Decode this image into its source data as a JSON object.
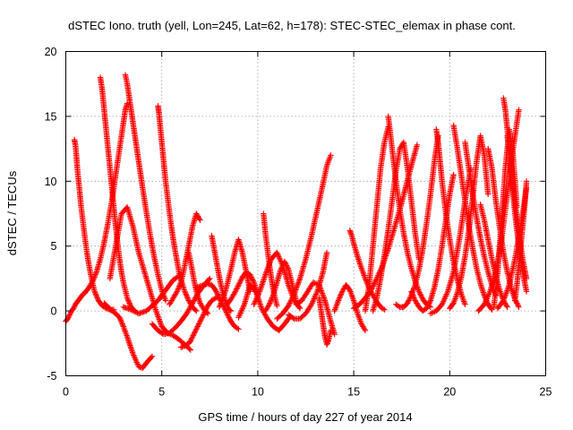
{
  "chart_data": {
    "type": "scatter",
    "title": "dSTEC Iono. truth (yell, Lon=245, Lat=62, h=178): STEC-STEC_elemax in phase cont.",
    "xlabel": "GPS time / hours of day 227 of year 2014",
    "ylabel": "dSTEC  / TECUs",
    "xlim": [
      0,
      25
    ],
    "ylim": [
      -5,
      20
    ],
    "xticks": [
      0,
      5,
      10,
      15,
      20,
      25
    ],
    "yticks": [
      -5,
      0,
      5,
      10,
      15,
      20
    ],
    "grid": true,
    "legend": "none",
    "marker": "plus",
    "color": "#ff0000",
    "series": [
      {
        "x": [
          0.0,
          0.1,
          0.2,
          0.3,
          0.4,
          0.5,
          0.6,
          0.7,
          0.8,
          0.9,
          1.0
        ],
        "y": [
          -0.8,
          -0.6,
          -0.3,
          0.0,
          0.2,
          0.5,
          0.7,
          0.9,
          1.1,
          1.3,
          1.4
        ]
      },
      {
        "x": [
          0.45,
          0.5,
          0.55,
          0.6,
          0.7,
          0.8,
          0.9,
          1.0,
          1.1,
          1.2,
          1.3,
          1.4,
          1.5,
          1.7,
          1.9,
          2.1,
          2.3,
          2.5
        ],
        "y": [
          13.2,
          12.8,
          12.0,
          11.0,
          9.5,
          8.0,
          6.8,
          5.6,
          4.5,
          3.6,
          2.8,
          2.1,
          1.5,
          0.8,
          0.4,
          0.2,
          0.1,
          0.1
        ]
      },
      {
        "x": [
          1.0,
          1.2,
          1.4,
          1.6,
          1.8,
          2.0,
          2.2,
          2.4,
          2.6,
          2.8,
          3.0,
          3.1,
          3.2
        ],
        "y": [
          1.4,
          1.8,
          2.3,
          3.0,
          4.0,
          5.3,
          6.8,
          8.5,
          10.5,
          12.5,
          14.5,
          15.5,
          16.0
        ]
      },
      {
        "x": [
          1.8,
          1.9,
          2.0,
          2.1,
          2.2,
          2.3,
          2.4,
          2.5,
          2.6,
          2.7,
          2.8,
          2.9,
          3.0,
          3.2,
          3.4,
          3.6
        ],
        "y": [
          18.0,
          17.0,
          15.5,
          14.0,
          12.5,
          11.0,
          9.5,
          8.0,
          6.5,
          5.2,
          4.0,
          3.0,
          2.2,
          1.0,
          0.3,
          0.0
        ]
      },
      {
        "x": [
          2.0,
          2.2,
          2.4,
          2.6,
          2.8,
          3.0,
          3.2,
          3.5,
          3.8,
          4.0,
          4.2,
          4.5
        ],
        "y": [
          0.6,
          0.3,
          0.0,
          -0.2,
          -0.5,
          -1.2,
          -2.0,
          -3.3,
          -4.3,
          -4.4,
          -4.0,
          -3.5
        ]
      },
      {
        "x": [
          3.1,
          3.2,
          3.3,
          3.4,
          3.5,
          3.6,
          3.7,
          3.8,
          3.9,
          4.0,
          4.2,
          4.4,
          4.6,
          4.8,
          5.0,
          5.2
        ],
        "y": [
          18.2,
          17.5,
          16.5,
          15.5,
          14.5,
          13.5,
          12.5,
          11.5,
          10.5,
          9.5,
          7.6,
          5.8,
          4.2,
          2.8,
          1.6,
          0.8
        ]
      },
      {
        "x": [
          2.3,
          2.6,
          2.9,
          3.2,
          3.5,
          3.8,
          4.1,
          4.4,
          4.7,
          5.0,
          5.3,
          5.6,
          5.9,
          6.2,
          6.5
        ],
        "y": [
          2.5,
          5.0,
          7.5,
          8.0,
          6.5,
          4.5,
          3.0,
          1.5,
          0.0,
          -1.2,
          -1.7,
          -1.9,
          -2.2,
          -2.6,
          -3.0
        ]
      },
      {
        "x": [
          3.0,
          3.4,
          3.8,
          4.2,
          4.5,
          4.8,
          5.0,
          5.3,
          5.6,
          6.0
        ],
        "y": [
          0.3,
          0.1,
          -0.2,
          0.0,
          0.4,
          0.8,
          1.2,
          1.8,
          2.4,
          2.8
        ]
      },
      {
        "x": [
          4.8,
          4.85,
          4.9,
          5.0,
          5.1,
          5.2,
          5.3,
          5.4,
          5.5,
          5.6,
          5.7,
          5.8,
          5.9,
          6.0,
          6.2,
          6.4,
          6.6,
          6.8
        ],
        "y": [
          15.8,
          15.3,
          14.5,
          13.0,
          11.5,
          10.0,
          8.8,
          7.6,
          6.5,
          5.5,
          4.6,
          3.8,
          3.0,
          2.4,
          1.5,
          0.8,
          0.3,
          0.0
        ]
      },
      {
        "x": [
          4.5,
          4.8,
          5.1,
          5.4,
          5.7,
          6.0,
          6.3,
          6.6,
          6.9,
          7.2,
          7.5
        ],
        "y": [
          -1.0,
          -1.5,
          -1.8,
          -1.7,
          -1.3,
          -0.8,
          -0.2,
          0.6,
          1.4,
          2.0,
          2.5
        ]
      },
      {
        "x": [
          5.4,
          5.6,
          5.8,
          6.0,
          6.2,
          6.4,
          6.6,
          6.8,
          7.0
        ],
        "y": [
          0.5,
          1.0,
          1.5,
          2.2,
          3.5,
          5.0,
          6.5,
          7.5,
          7.0
        ]
      },
      {
        "x": [
          6.0,
          6.2,
          6.4,
          6.5,
          6.6,
          6.8,
          7.0,
          7.2,
          7.4,
          7.6,
          7.8,
          8.0
        ],
        "y": [
          -2.8,
          -2.7,
          -2.5,
          -2.3,
          -2.0,
          -1.4,
          -0.8,
          -0.2,
          0.4,
          0.8,
          1.0,
          1.1
        ]
      },
      {
        "x": [
          6.4,
          6.5,
          6.6,
          6.7,
          6.8,
          7.0,
          7.2,
          7.4
        ],
        "y": [
          4.5,
          3.8,
          3.0,
          2.2,
          1.5,
          0.6,
          0.1,
          -0.2
        ]
      },
      {
        "x": [
          6.8,
          7.0,
          7.2,
          7.4,
          7.6,
          7.8,
          8.0,
          8.2,
          8.4,
          8.6,
          8.8,
          9.0
        ],
        "y": [
          1.8,
          1.9,
          2.0,
          2.1,
          2.0,
          1.6,
          1.0,
          0.4,
          -0.2,
          -0.8,
          -1.2,
          -1.4
        ]
      },
      {
        "x": [
          7.6,
          7.7,
          7.8,
          7.9,
          8.0,
          8.1,
          8.2,
          8.3,
          8.4,
          8.5,
          8.6
        ],
        "y": [
          5.8,
          5.0,
          4.2,
          3.4,
          2.6,
          1.9,
          1.3,
          0.8,
          0.4,
          0.1,
          0.0
        ]
      },
      {
        "x": [
          8.0,
          8.2,
          8.4,
          8.6,
          8.8,
          9.0,
          9.2,
          9.4,
          9.6
        ],
        "y": [
          0.3,
          1.0,
          2.0,
          3.2,
          4.5,
          5.5,
          4.5,
          3.0,
          1.5
        ]
      },
      {
        "x": [
          8.4,
          8.6,
          8.8,
          9.0,
          9.2,
          9.4,
          9.6,
          9.8,
          10.0
        ],
        "y": [
          0.5,
          0.9,
          1.4,
          2.0,
          2.6,
          3.0,
          2.8,
          2.2,
          1.2
        ]
      },
      {
        "x": [
          9.0,
          9.3,
          9.6,
          9.9,
          10.2,
          10.5,
          10.8,
          11.1,
          11.4,
          11.7
        ],
        "y": [
          -0.5,
          0.5,
          2.0,
          1.5,
          0.2,
          -0.6,
          -1.2,
          -1.5,
          -1.0,
          -0.4
        ]
      },
      {
        "x": [
          9.8,
          10.1,
          10.4,
          10.7,
          11.0,
          11.3,
          11.6,
          11.9,
          12.2
        ],
        "y": [
          0.5,
          1.5,
          2.8,
          4.0,
          4.5,
          3.5,
          2.0,
          0.8,
          0.2
        ]
      },
      {
        "x": [
          10.4,
          10.6,
          10.8,
          11.0,
          11.2,
          11.4,
          11.6,
          11.8,
          12.0
        ],
        "y": [
          0.0,
          0.5,
          1.2,
          2.2,
          3.2,
          3.8,
          3.2,
          2.0,
          0.8
        ]
      },
      {
        "x": [
          10.3,
          10.4,
          10.5,
          10.6,
          10.7,
          10.8,
          10.9,
          11.0
        ],
        "y": [
          7.5,
          6.0,
          4.8,
          3.6,
          2.6,
          1.7,
          1.0,
          0.4
        ]
      },
      {
        "x": [
          11.0,
          11.3,
          11.6,
          11.9,
          12.2,
          12.5,
          12.8,
          13.1,
          13.4,
          13.6,
          13.8
        ],
        "y": [
          -0.6,
          -0.2,
          0.4,
          1.3,
          2.5,
          4.0,
          5.8,
          7.8,
          9.8,
          11.2,
          12.0
        ]
      },
      {
        "x": [
          11.6,
          11.9,
          12.2,
          12.5,
          12.8,
          13.1,
          13.4,
          13.6
        ],
        "y": [
          -0.3,
          -0.6,
          -0.6,
          -0.2,
          0.5,
          1.5,
          3.0,
          4.5
        ]
      },
      {
        "x": [
          12.0,
          12.3,
          12.6,
          12.9,
          13.2,
          13.5,
          13.8,
          14.0
        ],
        "y": [
          0.5,
          0.8,
          1.5,
          2.2,
          2.0,
          0.8,
          -0.8,
          -1.8
        ]
      },
      {
        "x": [
          13.2,
          13.3,
          13.4,
          13.5,
          13.6,
          13.7,
          13.8
        ],
        "y": [
          1.0,
          0.0,
          -1.0,
          -2.0,
          -2.6,
          -2.2,
          -1.5
        ]
      },
      {
        "x": [
          14.0,
          14.2,
          14.4,
          14.6,
          14.8,
          15.0,
          15.2,
          15.4,
          15.6
        ],
        "y": [
          0.0,
          0.8,
          1.5,
          2.0,
          1.6,
          0.8,
          -0.2,
          -1.0,
          -1.5
        ]
      },
      {
        "x": [
          14.8,
          14.9,
          15.0,
          15.2,
          15.4,
          15.6,
          15.8,
          16.0,
          16.2,
          16.4,
          16.6
        ],
        "y": [
          6.2,
          5.8,
          5.2,
          4.2,
          3.3,
          2.5,
          1.8,
          1.2,
          0.7,
          0.3,
          0.1
        ]
      },
      {
        "x": [
          15.0,
          15.3,
          15.6,
          15.9,
          16.2,
          16.5,
          16.8,
          17.1,
          17.4,
          17.7,
          18.0,
          18.3
        ],
        "y": [
          0.2,
          0.5,
          1.0,
          1.6,
          2.5,
          3.5,
          4.8,
          6.3,
          7.8,
          9.5,
          11.2,
          12.8
        ]
      },
      {
        "x": [
          15.6,
          15.8,
          16.0,
          16.2,
          16.4,
          16.6,
          16.8
        ],
        "y": [
          0.0,
          2.0,
          5.0,
          8.0,
          11.0,
          13.0,
          14.2
        ]
      },
      {
        "x": [
          16.0,
          16.2,
          16.4,
          16.6,
          16.8,
          17.0,
          17.2,
          17.4,
          17.6,
          17.8,
          18.0,
          18.2,
          18.4
        ],
        "y": [
          0.0,
          1.0,
          2.5,
          4.3,
          6.3,
          8.5,
          10.8,
          12.5,
          13.0,
          11.0,
          8.5,
          6.0,
          4.0
        ]
      },
      {
        "x": [
          16.8,
          17.0,
          17.2,
          17.4,
          17.6,
          17.8,
          18.0,
          18.2,
          18.4,
          18.6,
          18.8,
          19.0
        ],
        "y": [
          15.0,
          12.5,
          10.0,
          7.8,
          6.0,
          4.5,
          3.3,
          2.3,
          1.5,
          0.9,
          0.5,
          0.3
        ]
      },
      {
        "x": [
          17.2,
          17.4,
          17.6,
          17.8,
          18.0,
          18.2,
          18.4,
          18.6,
          18.8,
          19.0,
          19.2,
          19.4
        ],
        "y": [
          0.5,
          0.3,
          0.3,
          0.6,
          1.2,
          2.0,
          3.2,
          4.8,
          6.8,
          9.0,
          11.5,
          13.5
        ]
      },
      {
        "x": [
          18.0,
          18.2,
          18.4,
          18.6,
          18.8,
          19.0,
          19.2,
          19.4,
          19.6,
          19.8,
          20.0,
          20.2
        ],
        "y": [
          1.5,
          0.8,
          0.3,
          0.0,
          0.2,
          0.8,
          1.8,
          3.2,
          5.0,
          7.0,
          9.0,
          10.5
        ]
      },
      {
        "x": [
          19.3,
          19.4,
          19.5,
          19.6,
          19.8,
          20.0,
          20.2,
          20.4,
          20.6,
          20.8
        ],
        "y": [
          14.0,
          13.0,
          11.5,
          10.0,
          7.5,
          5.5,
          3.8,
          2.4,
          1.3,
          0.5
        ]
      },
      {
        "x": [
          19.0,
          19.3,
          19.6,
          19.9,
          20.2,
          20.5,
          20.8,
          21.1
        ],
        "y": [
          -0.2,
          0.0,
          0.5,
          1.5,
          3.0,
          5.5,
          8.5,
          11.0
        ]
      },
      {
        "x": [
          20.0,
          20.2,
          20.4,
          20.6,
          20.8,
          21.0,
          21.2,
          21.4,
          21.6,
          21.8,
          22.0
        ],
        "y": [
          0.2,
          0.6,
          1.4,
          2.6,
          4.2,
          6.2,
          8.8,
          11.5,
          13.5,
          12.0,
          9.0
        ]
      },
      {
        "x": [
          20.2,
          20.4,
          20.6,
          20.8,
          21.0,
          21.2,
          21.4,
          21.6,
          21.8,
          22.0,
          22.2
        ],
        "y": [
          14.3,
          12.5,
          10.5,
          8.5,
          6.5,
          4.8,
          3.3,
          2.1,
          1.2,
          0.5,
          0.1
        ]
      },
      {
        "x": [
          20.8,
          21.0,
          21.2,
          21.4,
          21.6,
          21.8,
          22.0,
          22.2,
          22.4
        ],
        "y": [
          13.0,
          11.0,
          9.0,
          7.2,
          5.6,
          4.2,
          3.0,
          2.0,
          1.2
        ]
      },
      {
        "x": [
          21.6,
          21.8,
          22.0,
          22.2,
          22.4,
          22.6,
          22.8,
          23.0
        ],
        "y": [
          8.2,
          7.0,
          5.5,
          4.0,
          2.7,
          1.6,
          0.8,
          0.3
        ]
      },
      {
        "x": [
          21.5,
          21.8,
          22.1,
          22.4,
          22.7,
          23.0,
          23.3,
          23.6
        ],
        "y": [
          0.0,
          0.5,
          1.5,
          3.0,
          5.5,
          9.0,
          12.5,
          15.5
        ]
      },
      {
        "x": [
          22.0,
          22.2,
          22.4,
          22.6,
          22.8,
          23.0,
          23.2,
          23.4,
          23.6
        ],
        "y": [
          12.5,
          11.0,
          8.5,
          6.5,
          4.5,
          3.0,
          1.8,
          0.9,
          0.3
        ]
      },
      {
        "x": [
          22.3,
          22.5,
          22.7,
          22.9,
          23.1,
          23.3,
          23.5
        ],
        "y": [
          0.3,
          3.0,
          7.0,
          11.0,
          14.0,
          12.0,
          8.0
        ]
      },
      {
        "x": [
          22.8,
          22.9,
          23.0,
          23.2,
          23.4,
          23.6,
          23.8,
          24.0
        ],
        "y": [
          16.4,
          15.5,
          14.0,
          11.0,
          8.5,
          6.0,
          4.0,
          2.5
        ]
      },
      {
        "x": [
          23.0,
          23.2,
          23.4,
          23.6,
          23.8,
          24.0
        ],
        "y": [
          13.5,
          10.5,
          7.5,
          5.0,
          3.0,
          1.5
        ]
      },
      {
        "x": [
          22.5,
          22.8,
          23.1,
          23.4,
          23.7,
          24.0
        ],
        "y": [
          0.2,
          0.8,
          2.0,
          4.0,
          6.5,
          9.5
        ]
      },
      {
        "x": [
          23.4,
          23.5,
          23.6,
          23.7,
          23.8,
          23.9,
          24.0
        ],
        "y": [
          0.8,
          2.0,
          3.5,
          5.0,
          6.5,
          8.0,
          10.0
        ]
      }
    ]
  }
}
